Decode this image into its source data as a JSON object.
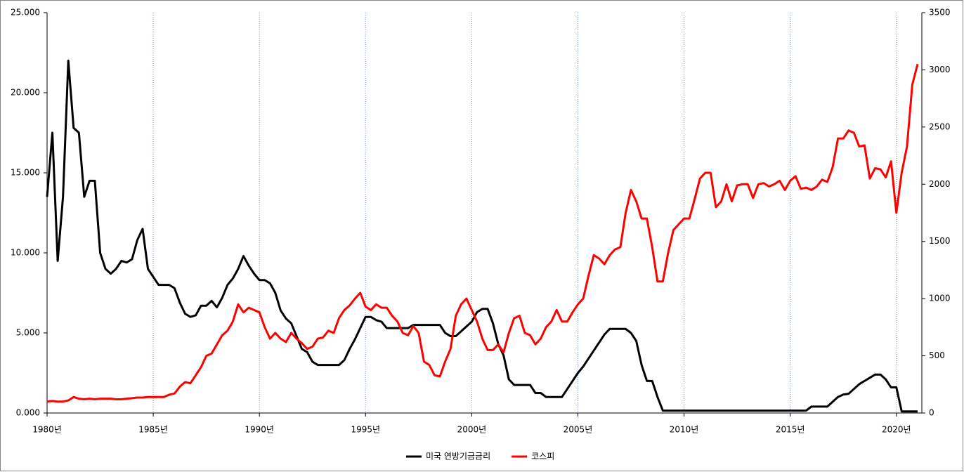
{
  "chart_data": {
    "type": "line",
    "x": [
      1980,
      1980.25,
      1980.5,
      1980.75,
      1981,
      1981.25,
      1981.5,
      1981.75,
      1982,
      1982.25,
      1982.5,
      1982.75,
      1983,
      1983.25,
      1983.5,
      1983.75,
      1984,
      1984.25,
      1984.5,
      1984.75,
      1985,
      1985.25,
      1985.5,
      1985.75,
      1986,
      1986.25,
      1986.5,
      1986.75,
      1987,
      1987.25,
      1987.5,
      1987.75,
      1988,
      1988.25,
      1988.5,
      1988.75,
      1989,
      1989.25,
      1989.5,
      1989.75,
      1990,
      1990.25,
      1990.5,
      1990.75,
      1991,
      1991.25,
      1991.5,
      1991.75,
      1992,
      1992.25,
      1992.5,
      1992.75,
      1993,
      1993.25,
      1993.5,
      1993.75,
      1994,
      1994.25,
      1994.5,
      1994.75,
      1995,
      1995.25,
      1995.5,
      1995.75,
      1996,
      1996.25,
      1996.5,
      1996.75,
      1997,
      1997.25,
      1997.5,
      1997.75,
      1998,
      1998.25,
      1998.5,
      1998.75,
      1999,
      1999.25,
      1999.5,
      1999.75,
      2000,
      2000.25,
      2000.5,
      2000.75,
      2001,
      2001.25,
      2001.5,
      2001.75,
      2002,
      2002.25,
      2002.5,
      2002.75,
      2003,
      2003.25,
      2003.5,
      2003.75,
      2004,
      2004.25,
      2004.5,
      2004.75,
      2005,
      2005.25,
      2005.5,
      2005.75,
      2006,
      2006.25,
      2006.5,
      2006.75,
      2007,
      2007.25,
      2007.5,
      2007.75,
      2008,
      2008.25,
      2008.5,
      2008.75,
      2009,
      2009.25,
      2009.5,
      2009.75,
      2010,
      2010.25,
      2010.5,
      2010.75,
      2011,
      2011.25,
      2011.5,
      2011.75,
      2012,
      2012.25,
      2012.5,
      2012.75,
      2013,
      2013.25,
      2013.5,
      2013.75,
      2014,
      2014.25,
      2014.5,
      2014.75,
      2015,
      2015.25,
      2015.5,
      2015.75,
      2016,
      2016.25,
      2016.5,
      2016.75,
      2017,
      2017.25,
      2017.5,
      2017.75,
      2018,
      2018.25,
      2018.5,
      2018.75,
      2019,
      2019.25,
      2019.5,
      2019.75,
      2020,
      2020.25,
      2020.5,
      2020.75,
      2021
    ],
    "series": [
      {
        "name": "미국 연방기금금리",
        "color": "#000000",
        "values": [
          13.5,
          17.5,
          9.5,
          13.5,
          22,
          17.8,
          17.5,
          13.5,
          14.5,
          14.5,
          10,
          9,
          8.7,
          9,
          9.5,
          9.4,
          9.6,
          10.8,
          11.5,
          9,
          8.5,
          8,
          8,
          8,
          7.8,
          6.9,
          6.2,
          6,
          6.1,
          6.7,
          6.7,
          7,
          6.6,
          7.2,
          8,
          8.4,
          9,
          9.8,
          9.2,
          8.7,
          8.3,
          8.3,
          8.1,
          7.5,
          6.4,
          5.9,
          5.6,
          4.8,
          4,
          3.8,
          3.2,
          3,
          3,
          3,
          3,
          3,
          3.3,
          4,
          4.6,
          5.3,
          6,
          6,
          5.8,
          5.7,
          5.3,
          5.3,
          5.3,
          5.3,
          5.3,
          5.5,
          5.5,
          5.5,
          5.5,
          5.5,
          5.5,
          5,
          4.8,
          4.8,
          5.1,
          5.4,
          5.7,
          6.3,
          6.5,
          6.5,
          5.6,
          4.3,
          3.6,
          2.1,
          1.75,
          1.75,
          1.75,
          1.75,
          1.25,
          1.25,
          1,
          1,
          1,
          1,
          1.5,
          2,
          2.5,
          2.9,
          3.4,
          3.9,
          4.4,
          4.9,
          5.25,
          5.25,
          5.25,
          5.25,
          5,
          4.5,
          3,
          2,
          2,
          1,
          0.15,
          0.15,
          0.15,
          0.15,
          0.15,
          0.15,
          0.15,
          0.15,
          0.15,
          0.15,
          0.15,
          0.15,
          0.15,
          0.15,
          0.15,
          0.15,
          0.15,
          0.15,
          0.15,
          0.15,
          0.15,
          0.15,
          0.15,
          0.15,
          0.15,
          0.15,
          0.15,
          0.15,
          0.4,
          0.4,
          0.4,
          0.4,
          0.7,
          1,
          1.15,
          1.2,
          1.5,
          1.8,
          2,
          2.2,
          2.4,
          2.4,
          2.1,
          1.6,
          1.6,
          0.1,
          0.1,
          0.1,
          0.1
        ]
      },
      {
        "name": "코스피",
        "color": "#ff0000",
        "axis": "y2",
        "values": [
          100,
          105,
          100,
          100,
          110,
          140,
          125,
          120,
          125,
          120,
          125,
          125,
          125,
          120,
          120,
          125,
          130,
          135,
          135,
          140,
          140,
          140,
          140,
          160,
          170,
          230,
          270,
          260,
          330,
          400,
          500,
          520,
          600,
          680,
          720,
          800,
          950,
          880,
          920,
          900,
          880,
          750,
          650,
          700,
          650,
          620,
          700,
          650,
          610,
          560,
          580,
          650,
          660,
          720,
          700,
          830,
          900,
          940,
          1000,
          1050,
          930,
          900,
          950,
          920,
          920,
          850,
          800,
          700,
          680,
          760,
          700,
          450,
          420,
          330,
          320,
          450,
          560,
          850,
          950,
          1000,
          900,
          800,
          650,
          550,
          550,
          600,
          530,
          700,
          830,
          850,
          700,
          680,
          600,
          650,
          750,
          800,
          900,
          800,
          800,
          880,
          950,
          1000,
          1200,
          1380,
          1350,
          1300,
          1380,
          1430,
          1450,
          1750,
          1950,
          1850,
          1700,
          1700,
          1450,
          1150,
          1150,
          1400,
          1600,
          1650,
          1700,
          1700,
          1870,
          2050,
          2100,
          2100,
          1800,
          1850,
          2000,
          1850,
          1990,
          2000,
          2000,
          1880,
          2000,
          2010,
          1980,
          2000,
          2030,
          1950,
          2030,
          2070,
          1960,
          1970,
          1950,
          1980,
          2040,
          2020,
          2150,
          2400,
          2400,
          2470,
          2450,
          2330,
          2340,
          2050,
          2140,
          2130,
          2060,
          2200,
          1750,
          2100,
          2330,
          2870,
          3050
        ]
      }
    ],
    "xlim": [
      1980,
      2021.2
    ],
    "xticks": [
      {
        "value": 1980,
        "label": "1980년"
      },
      {
        "value": 1985,
        "label": "1985년"
      },
      {
        "value": 1990,
        "label": "1990년"
      },
      {
        "value": 1995,
        "label": "1995년"
      },
      {
        "value": 2000,
        "label": "2000년"
      },
      {
        "value": 2005,
        "label": "2005년"
      },
      {
        "value": 2010,
        "label": "2010년"
      },
      {
        "value": 2015,
        "label": "2015년"
      },
      {
        "value": 2020,
        "label": "2020년"
      }
    ],
    "ylim": [
      0,
      25
    ],
    "yticks": [
      {
        "value": 0,
        "label": "0.000"
      },
      {
        "value": 5,
        "label": "5.000"
      },
      {
        "value": 10,
        "label": "10.000"
      },
      {
        "value": 15,
        "label": "15.000"
      },
      {
        "value": 20,
        "label": "20.000"
      },
      {
        "value": 25,
        "label": "25.000"
      }
    ],
    "y2lim": [
      0,
      3500
    ],
    "y2ticks": [
      0,
      500,
      1000,
      1500,
      2000,
      2500,
      3000,
      3500
    ],
    "grid": true,
    "legend": "bottom"
  }
}
